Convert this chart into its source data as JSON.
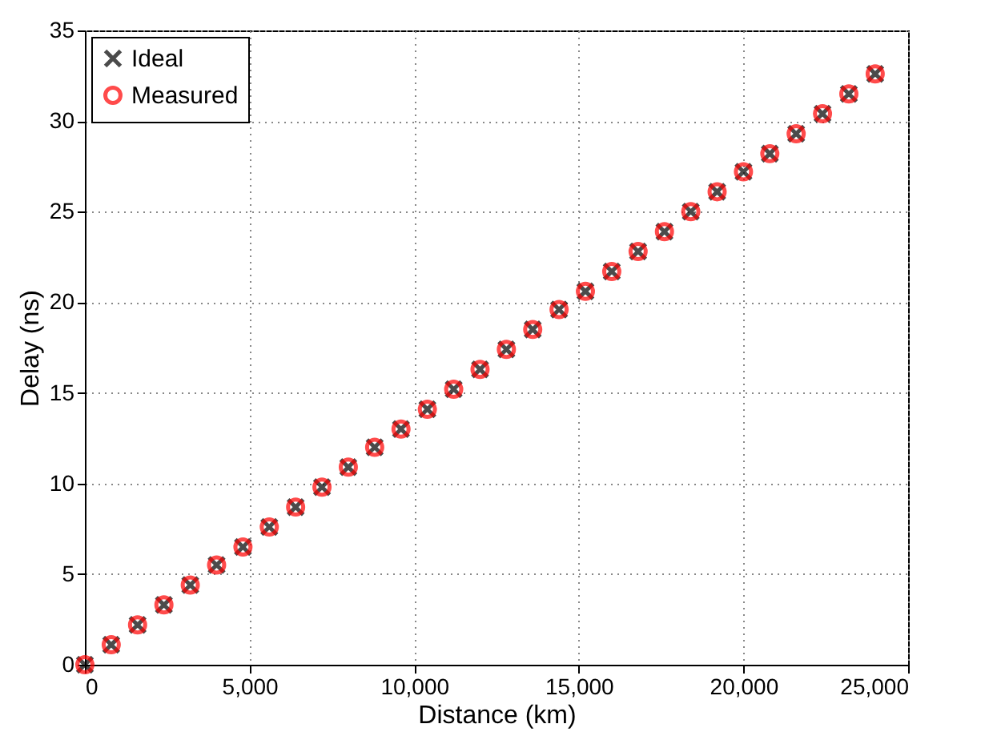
{
  "chart_data": {
    "type": "scatter",
    "xlabel": "Distance (km)",
    "ylabel": "Delay (ns)",
    "x": [
      0,
      800,
      1600,
      2400,
      3200,
      4000,
      4800,
      5600,
      6400,
      7200,
      8000,
      8800,
      9600,
      10400,
      11200,
      12000,
      12800,
      13600,
      14400,
      15200,
      16000,
      16800,
      17600,
      18400,
      19200,
      20000,
      20800,
      21600,
      22400,
      23200,
      24000
    ],
    "series": [
      {
        "name": "Ideal",
        "color": "#000000",
        "marker": "cross",
        "values": [
          0,
          1.1,
          2.2,
          3.3,
          4.4,
          5.5,
          6.5,
          7.6,
          8.7,
          9.8,
          10.9,
          12.0,
          13.0,
          14.1,
          15.2,
          16.3,
          17.4,
          18.5,
          19.6,
          20.6,
          21.7,
          22.8,
          23.9,
          25.0,
          26.1,
          27.2,
          28.2,
          29.3,
          30.4,
          31.5,
          32.6
        ]
      },
      {
        "name": "Measured",
        "color": "#ff0000",
        "marker": "circle",
        "values": [
          0,
          1.1,
          2.2,
          3.3,
          4.4,
          5.5,
          6.5,
          7.6,
          8.7,
          9.8,
          10.9,
          12.0,
          13.0,
          14.1,
          15.2,
          16.3,
          17.4,
          18.5,
          19.6,
          20.6,
          21.7,
          22.8,
          23.9,
          25.0,
          26.1,
          27.2,
          28.2,
          29.3,
          30.4,
          31.5,
          32.6
        ]
      }
    ],
    "xlim": [
      0,
      25000
    ],
    "xticks": [
      0,
      {
        "value": 5000,
        "label": "5,000"
      },
      {
        "value": 10000,
        "label": "10,000"
      },
      {
        "value": 15000,
        "label": "15,000"
      },
      {
        "value": 20000,
        "label": "20,000"
      },
      {
        "value": 25000,
        "label": "25,000"
      }
    ],
    "ylim": [
      0,
      35
    ],
    "yticks": [
      0,
      5,
      10,
      15,
      20,
      25,
      30,
      35
    ],
    "grid": true,
    "legend": "top left"
  }
}
